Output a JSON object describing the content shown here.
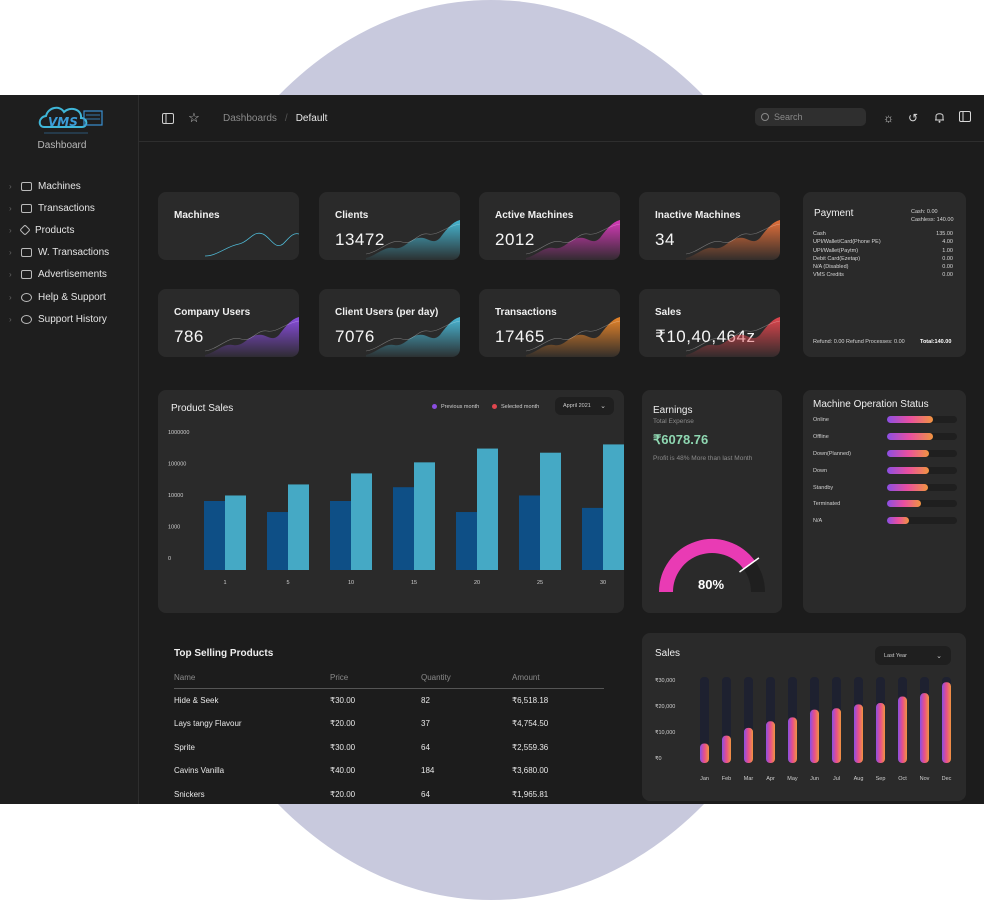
{
  "app": {
    "logo_caption": "Dashboard",
    "logo_mark": "VMS"
  },
  "sidebar": {
    "items": [
      {
        "label": "Machines",
        "icon": "machine-icon"
      },
      {
        "label": "Transactions",
        "icon": "id-card-icon"
      },
      {
        "label": "Products",
        "icon": "tag-icon"
      },
      {
        "label": "W. Transactions",
        "icon": "wallet-icon"
      },
      {
        "label": "Advertisements",
        "icon": "monitor-icon"
      },
      {
        "label": "Help & Support",
        "icon": "chat-icon"
      },
      {
        "label": "Support History",
        "icon": "chat-icon"
      }
    ]
  },
  "topbar": {
    "breadcrumb_root": "Dashboards",
    "breadcrumb_sep": "/",
    "breadcrumb_current": "Default",
    "search_placeholder": "Search"
  },
  "stats": [
    {
      "title": "Machines",
      "value": "",
      "color": "#4fb8d4"
    },
    {
      "title": "Clients",
      "value": "13472",
      "color": "#46b6d1"
    },
    {
      "title": "Active Machines",
      "value": "2012",
      "color": "#d83ab9"
    },
    {
      "title": "Inactive Machines",
      "value": "34",
      "color": "#e4703a"
    },
    {
      "title": "Company Users",
      "value": "786",
      "color": "#8a4de0"
    },
    {
      "title": "Client Users (per day)",
      "value": "7076",
      "color": "#4ab8d6"
    },
    {
      "title": "Transactions",
      "value": "17465",
      "color": "#e8852a"
    },
    {
      "title": "Sales",
      "value": "₹10,40,464z",
      "color": "#e0464e"
    }
  ],
  "payment": {
    "title": "Payment",
    "cash_summary": "Cash: 0.00",
    "cashless_summary": "Cashless: 140.00",
    "rows": [
      {
        "label": "Cash",
        "value": "135.00"
      },
      {
        "label": "UPI/Wallet/Card(Phone PE)",
        "value": "4.00"
      },
      {
        "label": "UPI/Wallet(Paytm)",
        "value": "1.00"
      },
      {
        "label": "Debit Card(Ezetap)",
        "value": "0.00"
      },
      {
        "label": "N/A (Disabled)",
        "value": "0.00"
      },
      {
        "label": "VMS Credits",
        "value": "0.00"
      }
    ],
    "footer_left": "Refund: 0.00 Refund Processes: 0.00",
    "footer_total": "Total:140.00"
  },
  "product_sales": {
    "title": "Product Sales",
    "legend_prev": "Previous month",
    "legend_sel": "Selected month",
    "prev_color": "#8a4de0",
    "sel_color": "#e0464e",
    "dropdown": "Appril 2021"
  },
  "chart_data": [
    {
      "type": "bar",
      "title": "Product Sales",
      "categories": [
        "1",
        "5",
        "10",
        "15",
        "20",
        "25",
        "30"
      ],
      "ytick_labels": [
        "1000000",
        "100000",
        "10000",
        "1000",
        "0"
      ],
      "series": [
        {
          "name": "Previous month",
          "color": "#0e4f86",
          "values": [
            0.5,
            0.42,
            0.5,
            0.6,
            0.42,
            0.54,
            0.45
          ]
        },
        {
          "name": "Selected month",
          "color": "#45a9c5",
          "values": [
            0.54,
            0.62,
            0.7,
            0.78,
            0.88,
            0.85,
            0.91
          ]
        }
      ],
      "ylim": [
        0,
        1
      ]
    },
    {
      "type": "bar",
      "title": "Sales",
      "categories": [
        "Jan",
        "Feb",
        "Mar",
        "Apr",
        "May",
        "Jun",
        "Jul",
        "Aug",
        "Sep",
        "Oct",
        "Nov",
        "Dec"
      ],
      "ytick_labels": [
        "₹30,000",
        "₹20,000",
        "₹10,000",
        "₹0"
      ],
      "values": [
        7500,
        10500,
        13500,
        16000,
        17500,
        20500,
        21000,
        22500,
        23000,
        25500,
        26800,
        31000
      ],
      "max": 33000,
      "ylim": [
        0,
        30000
      ]
    }
  ],
  "earnings": {
    "title": "Earnings",
    "subtitle": "Total Expense",
    "amount": "₹6078.76",
    "note": "Profit is 48% More than last Month",
    "gauge_value": "80%",
    "gauge_fraction": 0.8,
    "gauge_color": "#e93bb4"
  },
  "machine_status": {
    "title": "Machine Operation Status",
    "rows": [
      {
        "label": "Online",
        "fraction": 0.65
      },
      {
        "label": "Offline",
        "fraction": 0.65
      },
      {
        "label": "Down(Planned)",
        "fraction": 0.6
      },
      {
        "label": "Down",
        "fraction": 0.6
      },
      {
        "label": "Standby",
        "fraction": 0.58
      },
      {
        "label": "Terminated",
        "fraction": 0.48
      },
      {
        "label": "N/A",
        "fraction": 0.32
      }
    ]
  },
  "top_selling": {
    "title": "Top Selling Products",
    "columns": [
      "Name",
      "Price",
      "Quantity",
      "Amount"
    ],
    "rows": [
      [
        "Hide & Seek",
        "₹30.00",
        "82",
        "₹6,518.18"
      ],
      [
        "Lays tangy Flavour",
        "₹20.00",
        "37",
        "₹4,754.50"
      ],
      [
        "Sprite",
        "₹30.00",
        "64",
        "₹2,559.36"
      ],
      [
        "Cavins Vanilla",
        "₹40.00",
        "184",
        "₹3,680.00"
      ],
      [
        "Snickers",
        "₹20.00",
        "64",
        "₹1,965.81"
      ]
    ]
  },
  "sales_panel": {
    "title": "Sales",
    "dropdown": "Last Year"
  }
}
